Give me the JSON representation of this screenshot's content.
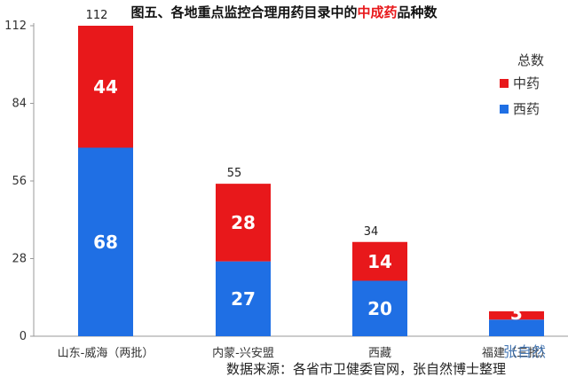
{
  "title": {
    "pre": "图五、各地重点监控合理用药目录中的",
    "highlight": "中成药",
    "post": "品种数"
  },
  "legend": {
    "title": "总数",
    "items": [
      {
        "label": "中药",
        "color": "#e8181b"
      },
      {
        "label": "西药",
        "color": "#1f6fe4"
      }
    ]
  },
  "source_note": "数据来源：各省市卫健委官网，张自然博士整理",
  "watermark": "张自然",
  "colors": {
    "title": "#111111",
    "highlight": "#e8181b",
    "axis": "#999999",
    "grid": "#e6e6e6"
  },
  "chart_data": {
    "type": "bar",
    "stacked": true,
    "categories": [
      "山东-威海（两批）",
      "内蒙-兴安盟",
      "西藏",
      "福建（三批）"
    ],
    "series": [
      {
        "name": "西药",
        "values": [
          68,
          27,
          20,
          6
        ],
        "color": "#1f6fe4",
        "labels": [
          "68",
          "27",
          "20",
          ""
        ]
      },
      {
        "name": "中药",
        "values": [
          44,
          28,
          14,
          3
        ],
        "color": "#e8181b",
        "labels": [
          "44",
          "28",
          "14",
          "3"
        ]
      }
    ],
    "totals": [
      112,
      55,
      34,
      9
    ],
    "total_labels": [
      "112",
      "55",
      "34",
      ""
    ],
    "ylim": [
      0,
      112
    ],
    "yticks": [
      0,
      28,
      56,
      84,
      112
    ],
    "legend_position": "right",
    "grid": false
  }
}
